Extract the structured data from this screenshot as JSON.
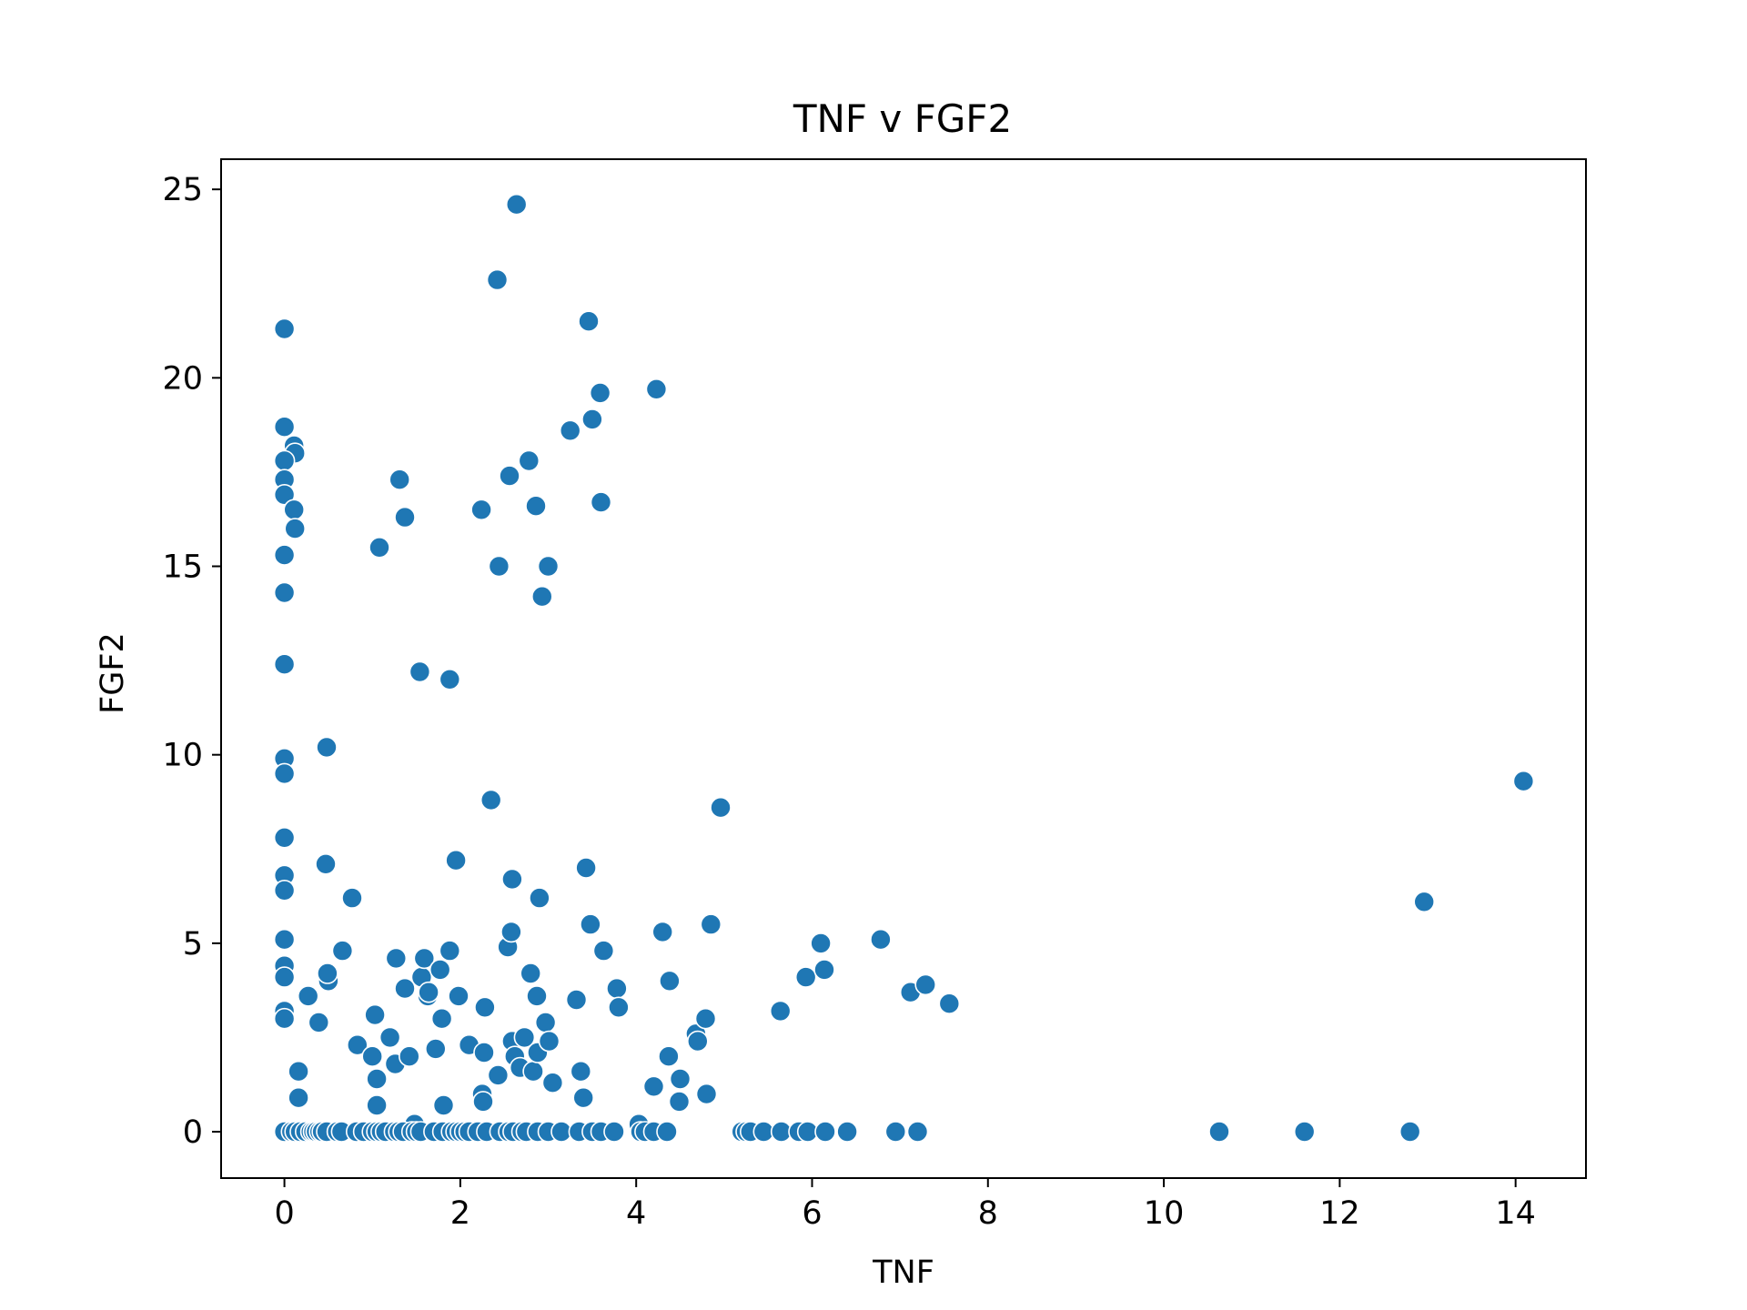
{
  "chart_data": {
    "type": "scatter",
    "title": "TNF v FGF2",
    "xlabel": "TNF",
    "ylabel": "FGF2",
    "xlim": [
      -0.72,
      14.8
    ],
    "ylim": [
      -1.23,
      25.8
    ],
    "xticks": [
      0,
      2,
      4,
      6,
      8,
      10,
      12,
      14
    ],
    "yticks": [
      0,
      5,
      10,
      15,
      20,
      25
    ],
    "xtick_labels": [
      "0",
      "2",
      "4",
      "6",
      "8",
      "10",
      "12",
      "14"
    ],
    "ytick_labels": [
      "0",
      "5",
      "10",
      "15",
      "20",
      "25"
    ],
    "grid": false,
    "legend": "none",
    "marker_color": "#1f77b4",
    "edge_color": "#ffffff",
    "points": [
      [
        0,
        21.3
      ],
      [
        0,
        18.7
      ],
      [
        0.11,
        18.2
      ],
      [
        0.12,
        18.0
      ],
      [
        0,
        17.8
      ],
      [
        0,
        17.3
      ],
      [
        0,
        16.9
      ],
      [
        0.11,
        16.5
      ],
      [
        0.12,
        16.0
      ],
      [
        0,
        15.3
      ],
      [
        0,
        14.3
      ],
      [
        0,
        12.4
      ],
      [
        0,
        9.9
      ],
      [
        0,
        9.5
      ],
      [
        0,
        7.8
      ],
      [
        0,
        6.8
      ],
      [
        0,
        6.4
      ],
      [
        0,
        5.1
      ],
      [
        0,
        4.4
      ],
      [
        0,
        4.1
      ],
      [
        0,
        3.2
      ],
      [
        0,
        3.0
      ],
      [
        0.16,
        1.6
      ],
      [
        0.16,
        0.9
      ],
      [
        0.27,
        3.6
      ],
      [
        0.39,
        2.9
      ],
      [
        0.47,
        7.1
      ],
      [
        0.48,
        10.2
      ],
      [
        0.5,
        4.0
      ],
      [
        0.49,
        4.2
      ],
      [
        0.66,
        4.8
      ],
      [
        0.77,
        6.2
      ],
      [
        0.83,
        2.3
      ],
      [
        1.0,
        2.0
      ],
      [
        1.03,
        3.1
      ],
      [
        1.05,
        1.4
      ],
      [
        1.05,
        0.7
      ],
      [
        1.08,
        15.5
      ],
      [
        1.2,
        2.5
      ],
      [
        1.26,
        1.8
      ],
      [
        1.27,
        4.6
      ],
      [
        1.31,
        17.3
      ],
      [
        1.37,
        16.3
      ],
      [
        1.37,
        3.8
      ],
      [
        1.42,
        2.0
      ],
      [
        1.48,
        0.2
      ],
      [
        1.54,
        12.2
      ],
      [
        1.56,
        4.1
      ],
      [
        1.59,
        4.6
      ],
      [
        1.63,
        3.6
      ],
      [
        1.64,
        3.7
      ],
      [
        1.72,
        2.2
      ],
      [
        1.77,
        4.3
      ],
      [
        1.79,
        3.0
      ],
      [
        1.81,
        0.7
      ],
      [
        1.88,
        12.0
      ],
      [
        1.88,
        4.8
      ],
      [
        1.95,
        7.2
      ],
      [
        1.98,
        3.6
      ],
      [
        2.1,
        2.3
      ],
      [
        2.24,
        16.5
      ],
      [
        2.25,
        1.0
      ],
      [
        2.26,
        0.8
      ],
      [
        2.27,
        2.1
      ],
      [
        2.28,
        3.3
      ],
      [
        2.35,
        8.8
      ],
      [
        2.42,
        22.6
      ],
      [
        2.44,
        15.0
      ],
      [
        2.43,
        1.5
      ],
      [
        2.54,
        4.9
      ],
      [
        2.56,
        17.4
      ],
      [
        2.58,
        5.3
      ],
      [
        2.59,
        6.7
      ],
      [
        2.59,
        2.4
      ],
      [
        2.62,
        2.0
      ],
      [
        2.64,
        24.6
      ],
      [
        2.68,
        1.7
      ],
      [
        2.73,
        2.5
      ],
      [
        2.78,
        17.8
      ],
      [
        2.8,
        4.2
      ],
      [
        2.83,
        1.6
      ],
      [
        2.86,
        16.6
      ],
      [
        2.87,
        3.6
      ],
      [
        2.88,
        2.1
      ],
      [
        2.9,
        6.2
      ],
      [
        2.93,
        14.2
      ],
      [
        2.97,
        2.9
      ],
      [
        3.0,
        15.0
      ],
      [
        3.01,
        2.4
      ],
      [
        3.05,
        1.3
      ],
      [
        3.25,
        18.6
      ],
      [
        3.32,
        3.5
      ],
      [
        3.37,
        1.6
      ],
      [
        3.4,
        0.9
      ],
      [
        3.43,
        7.0
      ],
      [
        3.46,
        21.5
      ],
      [
        3.48,
        5.5
      ],
      [
        3.5,
        18.9
      ],
      [
        3.59,
        19.6
      ],
      [
        3.6,
        16.7
      ],
      [
        3.63,
        4.8
      ],
      [
        3.78,
        3.8
      ],
      [
        3.8,
        3.3
      ],
      [
        4.03,
        0.2
      ],
      [
        4.2,
        1.2
      ],
      [
        4.23,
        19.7
      ],
      [
        4.3,
        5.3
      ],
      [
        4.37,
        2.0
      ],
      [
        4.38,
        4.0
      ],
      [
        4.49,
        0.8
      ],
      [
        4.5,
        1.4
      ],
      [
        4.68,
        2.6
      ],
      [
        4.7,
        2.4
      ],
      [
        4.79,
        3.0
      ],
      [
        4.8,
        1.0
      ],
      [
        4.85,
        5.5
      ],
      [
        4.96,
        8.6
      ],
      [
        5.64,
        3.2
      ],
      [
        5.93,
        4.1
      ],
      [
        6.1,
        5.0
      ],
      [
        6.14,
        4.3
      ],
      [
        6.78,
        5.1
      ],
      [
        7.12,
        3.7
      ],
      [
        7.29,
        3.9
      ],
      [
        7.56,
        3.4
      ],
      [
        14.09,
        9.3
      ],
      [
        12.96,
        6.1
      ],
      [
        0,
        0
      ],
      [
        0.08,
        0
      ],
      [
        0.12,
        0
      ],
      [
        0.18,
        0
      ],
      [
        0.24,
        0
      ],
      [
        0.3,
        0
      ],
      [
        0.33,
        0
      ],
      [
        0.36,
        0
      ],
      [
        0.4,
        0
      ],
      [
        0.43,
        0
      ],
      [
        0.48,
        0
      ],
      [
        0.6,
        0
      ],
      [
        0.65,
        0
      ],
      [
        0.82,
        0
      ],
      [
        0.9,
        0
      ],
      [
        1.0,
        0
      ],
      [
        1.05,
        0
      ],
      [
        1.1,
        0
      ],
      [
        1.15,
        0
      ],
      [
        1.25,
        0
      ],
      [
        1.3,
        0
      ],
      [
        1.35,
        0
      ],
      [
        1.45,
        0
      ],
      [
        1.5,
        0
      ],
      [
        1.55,
        0
      ],
      [
        1.7,
        0
      ],
      [
        1.8,
        0
      ],
      [
        1.9,
        0
      ],
      [
        1.95,
        0
      ],
      [
        2.0,
        0
      ],
      [
        2.05,
        0
      ],
      [
        2.1,
        0
      ],
      [
        2.2,
        0
      ],
      [
        2.3,
        0
      ],
      [
        2.45,
        0
      ],
      [
        2.55,
        0
      ],
      [
        2.6,
        0
      ],
      [
        2.7,
        0
      ],
      [
        2.75,
        0
      ],
      [
        2.88,
        0
      ],
      [
        3.0,
        0
      ],
      [
        3.15,
        0
      ],
      [
        3.35,
        0
      ],
      [
        3.5,
        0
      ],
      [
        3.6,
        0
      ],
      [
        3.75,
        0
      ],
      [
        4.05,
        0
      ],
      [
        4.1,
        0
      ],
      [
        4.2,
        0
      ],
      [
        4.35,
        0
      ],
      [
        5.2,
        0
      ],
      [
        5.25,
        0
      ],
      [
        5.3,
        0
      ],
      [
        5.45,
        0
      ],
      [
        5.65,
        0
      ],
      [
        5.85,
        0
      ],
      [
        5.95,
        0
      ],
      [
        6.15,
        0
      ],
      [
        6.4,
        0
      ],
      [
        6.95,
        0
      ],
      [
        7.2,
        0
      ],
      [
        10.63,
        0
      ],
      [
        11.6,
        0
      ],
      [
        12.8,
        0
      ]
    ]
  }
}
